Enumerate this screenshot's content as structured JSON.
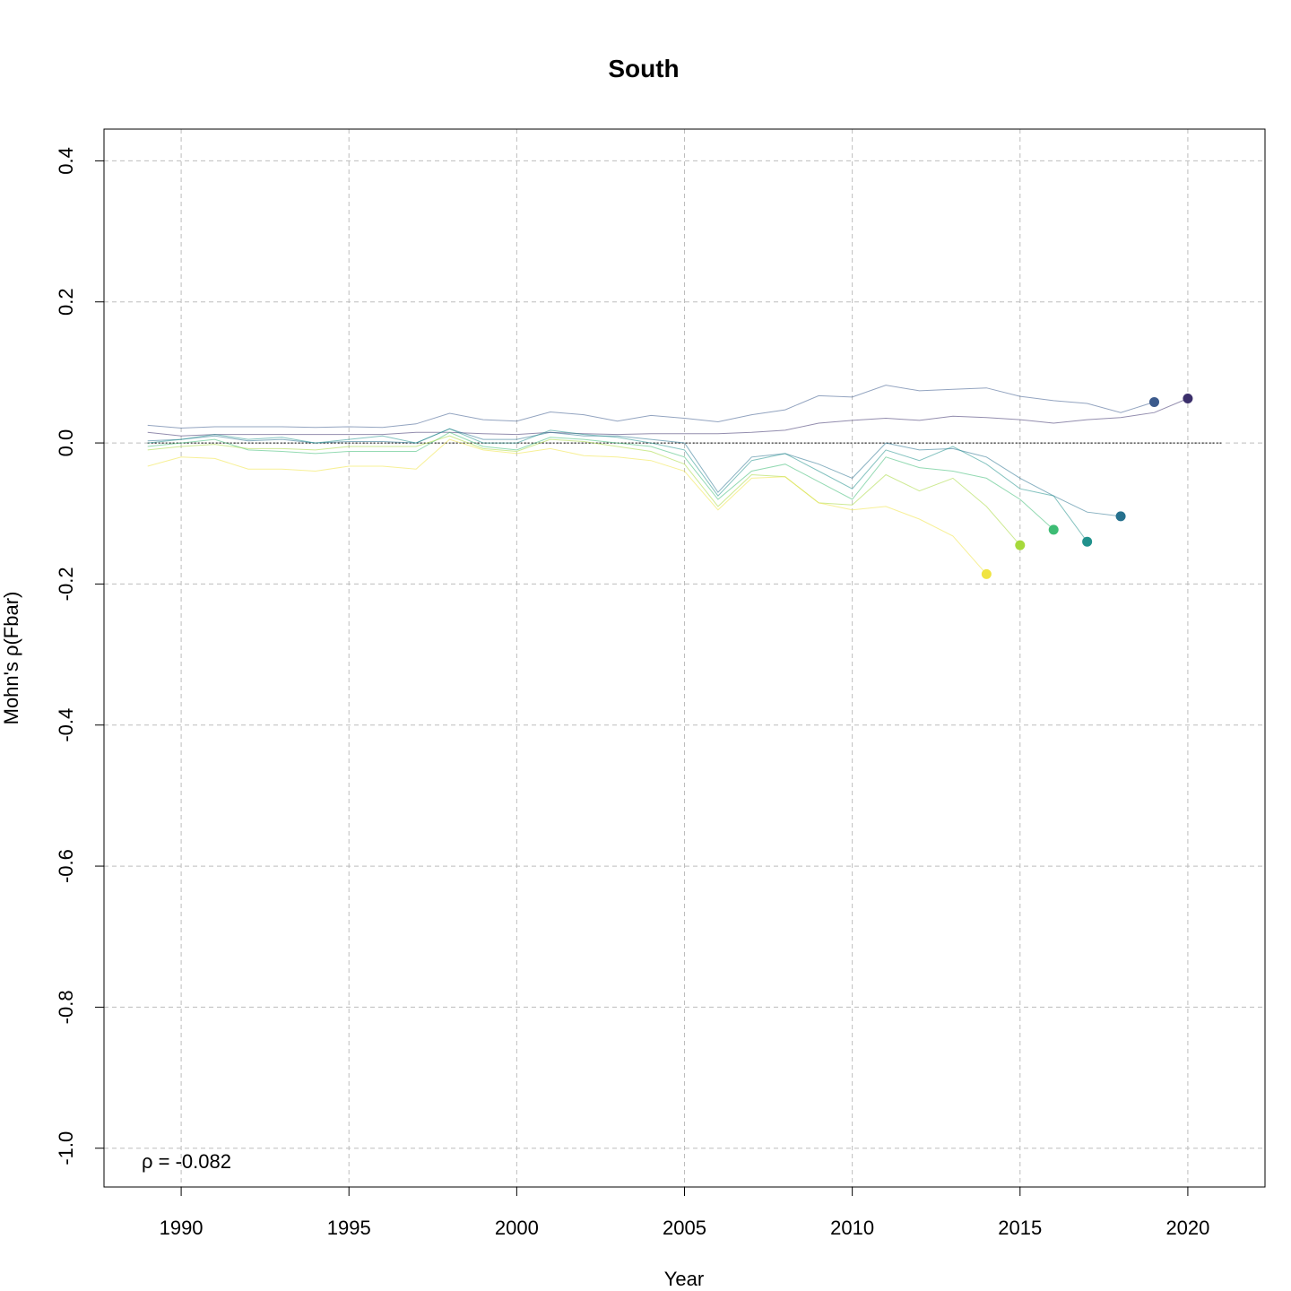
{
  "chart_data": {
    "type": "line",
    "title": "South",
    "xlabel": "Year",
    "ylabel": "Mohn's ρ(Fbar)",
    "xlim": [
      1987.7,
      2022.3
    ],
    "ylim": [
      -1.055,
      0.445
    ],
    "x_ticks": [
      1990,
      1995,
      2000,
      2005,
      2010,
      2015,
      2020
    ],
    "y_ticks": [
      -1.0,
      -0.8,
      -0.6,
      -0.4,
      -0.2,
      0.0,
      0.2,
      0.4
    ],
    "y_tick_labels": [
      "-1.0",
      "-0.8",
      "-0.6",
      "-0.4",
      "-0.2",
      "0.0",
      "0.2",
      "0.4"
    ],
    "grid": true,
    "reference_line": {
      "y": 0,
      "x_start": 1989,
      "x_end": 2021
    },
    "annotation": "ρ = -0.082",
    "series": [
      {
        "color": "#3B2F6B",
        "end_year": 2020,
        "end_value": 0.063,
        "x": [
          1989,
          1990,
          1991,
          1992,
          1993,
          1994,
          1995,
          1996,
          1997,
          1998,
          1999,
          2000,
          2001,
          2002,
          2003,
          2004,
          2005,
          2006,
          2007,
          2008,
          2009,
          2010,
          2011,
          2012,
          2013,
          2014,
          2015,
          2016,
          2017,
          2018,
          2019,
          2020
        ],
        "y": [
          0.015,
          0.01,
          0.012,
          0.012,
          0.012,
          0.012,
          0.012,
          0.012,
          0.015,
          0.015,
          0.013,
          0.012,
          0.015,
          0.013,
          0.012,
          0.013,
          0.013,
          0.013,
          0.015,
          0.018,
          0.028,
          0.032,
          0.035,
          0.032,
          0.038,
          0.036,
          0.033,
          0.028,
          0.033,
          0.036,
          0.043,
          0.063
        ]
      },
      {
        "color": "#3B5A8C",
        "end_year": 2019,
        "end_value": 0.058,
        "x": [
          1989,
          1990,
          1991,
          1992,
          1993,
          1994,
          1995,
          1996,
          1997,
          1998,
          1999,
          2000,
          2001,
          2002,
          2003,
          2004,
          2005,
          2006,
          2007,
          2008,
          2009,
          2010,
          2011,
          2012,
          2013,
          2014,
          2015,
          2016,
          2017,
          2018,
          2019
        ],
        "y": [
          0.025,
          0.021,
          0.023,
          0.023,
          0.023,
          0.022,
          0.023,
          0.022,
          0.027,
          0.042,
          0.033,
          0.031,
          0.044,
          0.04,
          0.031,
          0.039,
          0.035,
          0.03,
          0.04,
          0.047,
          0.067,
          0.065,
          0.082,
          0.074,
          0.076,
          0.078,
          0.066,
          0.06,
          0.056,
          0.043,
          0.058
        ]
      },
      {
        "color": "#26718E",
        "end_year": 2018,
        "end_value": -0.104,
        "x": [
          1989,
          1990,
          1991,
          1992,
          1993,
          1994,
          1995,
          1996,
          1997,
          1998,
          1999,
          2000,
          2001,
          2002,
          2003,
          2004,
          2005,
          2006,
          2007,
          2008,
          2009,
          2010,
          2011,
          2012,
          2013,
          2014,
          2015,
          2016,
          2017,
          2018
        ],
        "y": [
          0.003,
          0.005,
          0.01,
          0.003,
          0.005,
          0.0,
          0.002,
          0.002,
          0.0,
          0.02,
          0.005,
          0.005,
          0.015,
          0.01,
          0.01,
          0.005,
          0.0,
          -0.07,
          -0.02,
          -0.015,
          -0.03,
          -0.05,
          0.0,
          -0.01,
          -0.008,
          -0.02,
          -0.05,
          -0.075,
          -0.098,
          -0.104
        ]
      },
      {
        "color": "#21918C",
        "end_year": 2017,
        "end_value": -0.14,
        "x": [
          1989,
          1990,
          1991,
          1992,
          1993,
          1994,
          1995,
          1996,
          1997,
          1998,
          1999,
          2000,
          2001,
          2002,
          2003,
          2004,
          2005,
          2006,
          2007,
          2008,
          2009,
          2010,
          2011,
          2012,
          2013,
          2014,
          2015,
          2016,
          2017
        ],
        "y": [
          0.0,
          0.005,
          0.012,
          0.005,
          0.008,
          0.0,
          0.005,
          0.01,
          0.0,
          0.02,
          0.0,
          0.0,
          0.018,
          0.012,
          0.008,
          0.0,
          -0.01,
          -0.075,
          -0.025,
          -0.015,
          -0.04,
          -0.065,
          -0.01,
          -0.025,
          -0.005,
          -0.03,
          -0.065,
          -0.075,
          -0.14
        ]
      },
      {
        "color": "#3DBC74",
        "end_year": 2016,
        "end_value": -0.123,
        "x": [
          1989,
          1990,
          1991,
          1992,
          1993,
          1994,
          1995,
          1996,
          1997,
          1998,
          1999,
          2000,
          2001,
          2002,
          2003,
          2004,
          2005,
          2006,
          2007,
          2008,
          2009,
          2010,
          2011,
          2012,
          2013,
          2014,
          2015,
          2016
        ],
        "y": [
          -0.005,
          0.0,
          0.005,
          -0.01,
          -0.012,
          -0.015,
          -0.012,
          -0.012,
          -0.012,
          0.015,
          -0.005,
          -0.01,
          0.008,
          0.005,
          0.0,
          -0.005,
          -0.02,
          -0.08,
          -0.04,
          -0.03,
          -0.055,
          -0.08,
          -0.02,
          -0.035,
          -0.04,
          -0.05,
          -0.08,
          -0.123
        ]
      },
      {
        "color": "#A6D93B",
        "end_year": 2015,
        "end_value": -0.145,
        "x": [
          1989,
          1990,
          1991,
          1992,
          1993,
          1994,
          1995,
          1996,
          1997,
          1998,
          1999,
          2000,
          2001,
          2002,
          2003,
          2004,
          2005,
          2006,
          2007,
          2008,
          2009,
          2010,
          2011,
          2012,
          2013,
          2014,
          2015
        ],
        "y": [
          -0.01,
          -0.005,
          -0.002,
          -0.008,
          -0.008,
          -0.01,
          -0.005,
          -0.005,
          -0.005,
          0.01,
          -0.008,
          -0.012,
          0.005,
          0.002,
          -0.005,
          -0.012,
          -0.03,
          -0.09,
          -0.045,
          -0.048,
          -0.085,
          -0.088,
          -0.045,
          -0.068,
          -0.05,
          -0.09,
          -0.145
        ]
      },
      {
        "color": "#F0E442",
        "end_year": 2014,
        "end_value": -0.186,
        "x": [
          1989,
          1990,
          1991,
          1992,
          1993,
          1994,
          1995,
          1996,
          1997,
          1998,
          1999,
          2000,
          2001,
          2002,
          2003,
          2004,
          2005,
          2006,
          2007,
          2008,
          2009,
          2010,
          2011,
          2012,
          2013,
          2014
        ],
        "y": [
          -0.033,
          -0.02,
          -0.022,
          -0.037,
          -0.037,
          -0.04,
          -0.033,
          -0.033,
          -0.037,
          0.005,
          -0.01,
          -0.015,
          -0.008,
          -0.018,
          -0.02,
          -0.025,
          -0.04,
          -0.095,
          -0.05,
          -0.048,
          -0.085,
          -0.095,
          -0.09,
          -0.108,
          -0.132,
          -0.186
        ]
      }
    ]
  }
}
